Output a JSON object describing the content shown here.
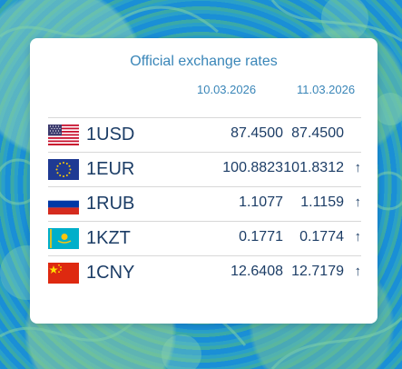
{
  "widget": {
    "title": "Official exchange rates",
    "date_previous": "10.03.2026",
    "date_current": "11.03.2026"
  },
  "rates": [
    {
      "code": "1USD",
      "flag": "us-flag-icon",
      "prev": "87.4500",
      "curr": "87.4500",
      "trend": ""
    },
    {
      "code": "1EUR",
      "flag": "eu-flag-icon",
      "prev": "100.8823",
      "curr": "101.8312",
      "trend": "↑"
    },
    {
      "code": "1RUB",
      "flag": "ru-flag-icon",
      "prev": "1.1077",
      "curr": "1.1159",
      "trend": "↑"
    },
    {
      "code": "1KZT",
      "flag": "kz-flag-icon",
      "prev": "0.1771",
      "curr": "0.1774",
      "trend": "↑"
    },
    {
      "code": "1CNY",
      "flag": "cn-flag-icon",
      "prev": "12.6408",
      "curr": "12.7179",
      "trend": "↑"
    }
  ],
  "colors": {
    "title": "#3a86b8",
    "text": "#1c3d66",
    "background": "#1f93d4"
  }
}
